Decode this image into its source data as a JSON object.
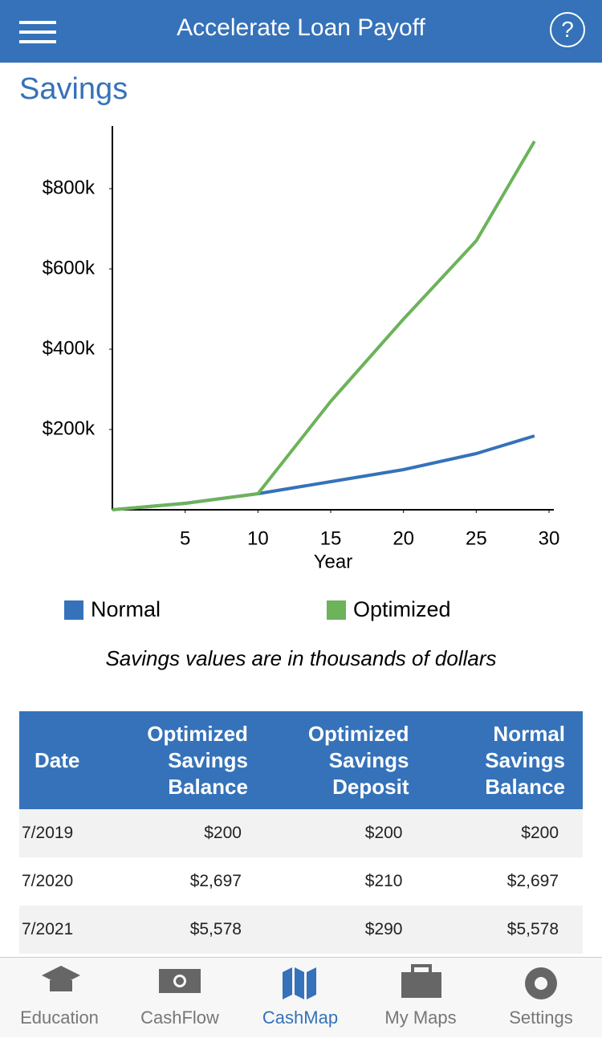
{
  "header": {
    "title": "Accelerate Loan Payoff",
    "help": "?"
  },
  "section_title": "Savings",
  "chart_data": {
    "type": "line",
    "x": [
      0,
      5,
      10,
      15,
      20,
      25,
      29
    ],
    "xlim": [
      0,
      30
    ],
    "xticks": [
      5,
      10,
      15,
      20,
      25,
      30
    ],
    "ylim": [
      0,
      956
    ],
    "yticks": [
      {
        "value": 200,
        "label": "$200k"
      },
      {
        "value": 400,
        "label": "$400k"
      },
      {
        "value": 600,
        "label": "$600k"
      },
      {
        "value": 800,
        "label": "$800k"
      }
    ],
    "xlabel": "Year",
    "series": [
      {
        "name": "Normal",
        "color": "#3572b9",
        "values": [
          0,
          16,
          40,
          70,
          100,
          140,
          184
        ]
      },
      {
        "name": "Optimized",
        "color": "#6cb35a",
        "values": [
          0,
          16,
          40,
          270,
          475,
          670,
          918
        ]
      }
    ],
    "note": "Savings values are in thousands of dollars"
  },
  "table": {
    "headers": [
      "Date",
      "Optimized Savings Balance",
      "Optimized Savings Deposit",
      "Normal Savings Balance"
    ],
    "rows": [
      [
        "7/2019",
        "$200",
        "$200",
        "$200"
      ],
      [
        "7/2020",
        "$2,697",
        "$210",
        "$2,697"
      ],
      [
        "7/2021",
        "$5,578",
        "$290",
        "$5,578"
      ]
    ]
  },
  "tabs": [
    "Education",
    "CashFlow",
    "CashMap",
    "My Maps",
    "Settings"
  ]
}
